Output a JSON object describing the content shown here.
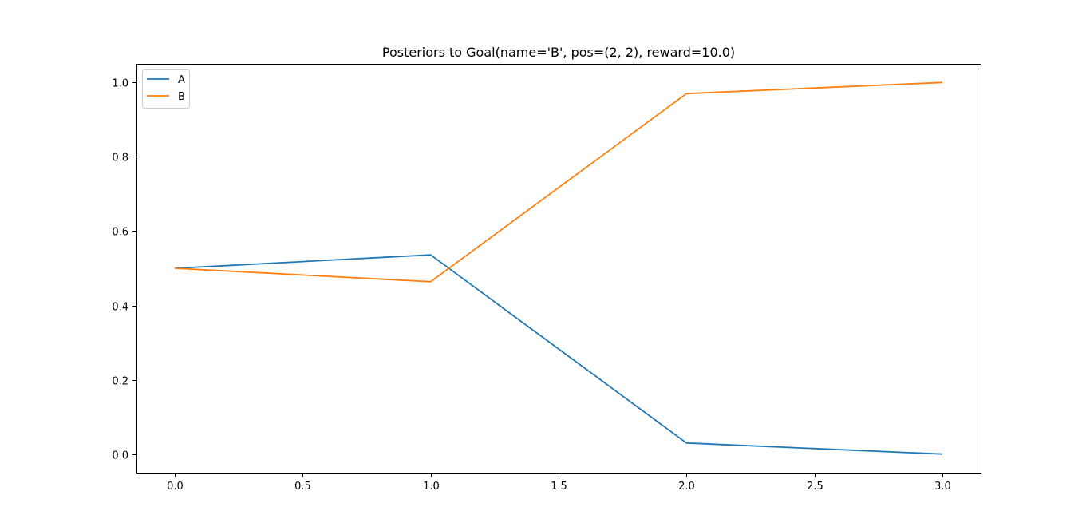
{
  "chart_data": {
    "type": "line",
    "title": "Posteriors to Goal(name='B', pos=(2, 2), reward=10.0)",
    "xlabel": "",
    "ylabel": "",
    "x": [
      0,
      1,
      2,
      3
    ],
    "series": [
      {
        "name": "A",
        "values": [
          0.5,
          0.536,
          0.03,
          0.0
        ],
        "color": "#1f77b4"
      },
      {
        "name": "B",
        "values": [
          0.5,
          0.464,
          0.97,
          1.0
        ],
        "color": "#ff7f0e"
      }
    ],
    "xlim": [
      -0.15,
      3.15
    ],
    "ylim": [
      -0.05,
      1.05
    ],
    "xticks": [
      0.0,
      0.5,
      1.0,
      1.5,
      2.0,
      2.5,
      3.0
    ],
    "xtick_labels": [
      "0.0",
      "0.5",
      "1.0",
      "1.5",
      "2.0",
      "2.5",
      "3.0"
    ],
    "yticks": [
      0.0,
      0.2,
      0.4,
      0.6,
      0.8,
      1.0
    ],
    "ytick_labels": [
      "0.0",
      "0.2",
      "0.4",
      "0.6",
      "0.8",
      "1.0"
    ],
    "grid": false,
    "legend": "upper left"
  }
}
